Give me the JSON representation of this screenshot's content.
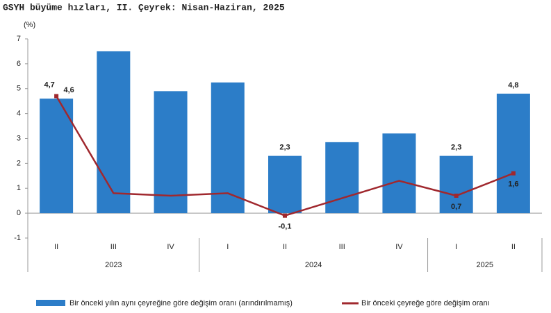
{
  "chart_data": {
    "type": "bar-line",
    "title": "GSYH büyüme hızları, II. Çeyrek: Nisan-Haziran, 2025",
    "y_label": "(%)",
    "category_groups": [
      {
        "label": "2023",
        "categories": [
          "II",
          "III",
          "IV"
        ]
      },
      {
        "label": "2024",
        "categories": [
          "I",
          "II",
          "III",
          "IV"
        ]
      },
      {
        "label": "2025",
        "categories": [
          "I",
          "II"
        ]
      }
    ],
    "series": [
      {
        "name": "Bir önceki yılın aynı çeyreğine göre değişim oranı (arındırılmamış)",
        "type": "bar",
        "color": "#2c7dc8",
        "values": [
          4.6,
          6.5,
          4.9,
          5.25,
          2.3,
          2.85,
          3.2,
          2.3,
          4.8
        ],
        "value_labels": [
          "4,6",
          null,
          null,
          null,
          "2,3",
          null,
          null,
          "2,3",
          "4,8"
        ]
      },
      {
        "name": "Bir önceki çeyreğe göre değişim oranı",
        "type": "line",
        "color": "#a0282e",
        "values": [
          4.7,
          0.8,
          0.7,
          0.8,
          -0.1,
          0.6,
          1.3,
          0.7,
          1.6
        ],
        "value_labels": [
          "4,7",
          null,
          null,
          null,
          "-0,1",
          null,
          null,
          "0,7",
          "1,6"
        ]
      }
    ],
    "ylim": [
      -1,
      7
    ],
    "yticks": [
      -1,
      0,
      1,
      2,
      3,
      4,
      5,
      6,
      7
    ],
    "grid": false
  }
}
